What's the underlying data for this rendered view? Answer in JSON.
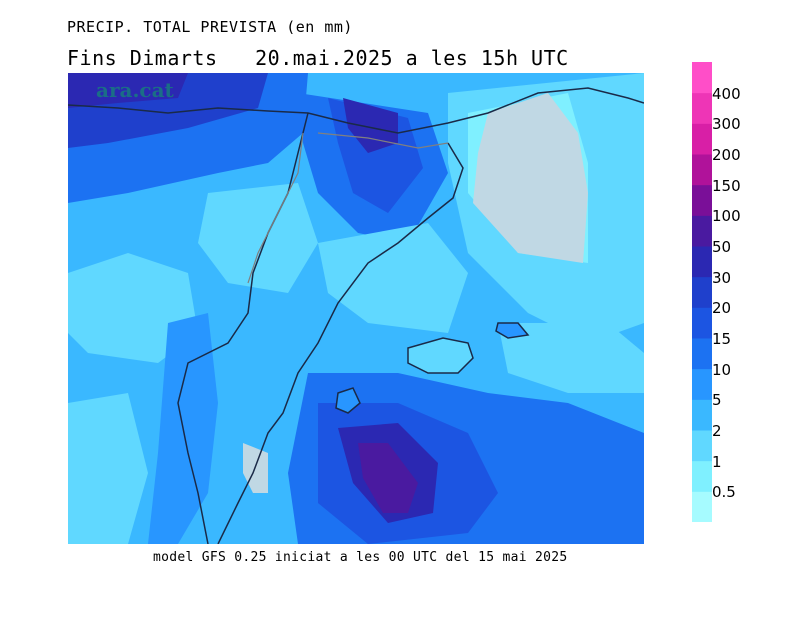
{
  "title_line1": "PRECIP. TOTAL PREVISTA (en mm)",
  "title_line2_left": "Fins Dimarts",
  "title_line2_right": "20.mai.2025 a les 15h UTC",
  "watermark": "ara.cat",
  "footer": "model GFS 0.25 iniciat a les 00 UTC del 15 mai 2025",
  "legend": {
    "colors": [
      "#a6fbff",
      "#7ff0ff",
      "#60d8ff",
      "#3ab8ff",
      "#2896ff",
      "#1c72f2",
      "#1c55e2",
      "#1f40cc",
      "#2b28b2",
      "#4a1aa0",
      "#7a0f98",
      "#b0129a",
      "#d81fa6",
      "#ee35b6",
      "#ff4ec8"
    ],
    "labels": [
      "0.5",
      "1",
      "2",
      "5",
      "10",
      "15",
      "20",
      "30",
      "50",
      "100",
      "150",
      "200",
      "300",
      "400"
    ]
  }
}
